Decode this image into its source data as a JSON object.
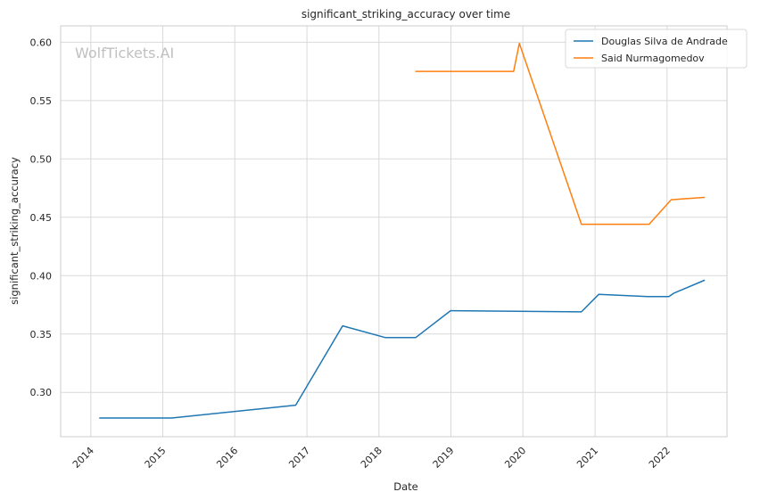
{
  "chart_data": {
    "type": "line",
    "title": "significant_striking_accuracy over time",
    "xlabel": "Date",
    "ylabel": "significant_striking_accuracy",
    "watermark": "WolfTickets.AI",
    "xlim": [
      "2013-08-01",
      "2022-11-01"
    ],
    "ylim": [
      0.262,
      0.614
    ],
    "x_ticks": [
      "2014-01-01",
      "2015-01-01",
      "2016-01-01",
      "2017-01-01",
      "2018-01-01",
      "2019-01-01",
      "2020-01-01",
      "2021-01-01",
      "2022-01-01"
    ],
    "x_tick_labels": [
      "2014",
      "2015",
      "2016",
      "2017",
      "2018",
      "2019",
      "2020",
      "2021",
      "2022"
    ],
    "y_ticks": [
      0.3,
      0.35,
      0.4,
      0.45,
      0.5,
      0.55,
      0.6
    ],
    "y_tick_labels": [
      "0.30",
      "0.35",
      "0.40",
      "0.45",
      "0.50",
      "0.55",
      "0.60"
    ],
    "grid": true,
    "legend_position": "top-right",
    "series": [
      {
        "name": "Douglas Silva de Andrade",
        "color": "#1f77b4",
        "points": [
          {
            "x": "2014-02-15",
            "y": 0.278
          },
          {
            "x": "2015-02-15",
            "y": 0.278
          },
          {
            "x": "2016-11-05",
            "y": 0.289
          },
          {
            "x": "2017-07-01",
            "y": 0.357
          },
          {
            "x": "2018-02-01",
            "y": 0.347
          },
          {
            "x": "2018-07-07",
            "y": 0.347
          },
          {
            "x": "2018-12-30",
            "y": 0.37
          },
          {
            "x": "2020-10-24",
            "y": 0.369
          },
          {
            "x": "2021-01-20",
            "y": 0.384
          },
          {
            "x": "2021-09-25",
            "y": 0.382
          },
          {
            "x": "2022-01-10",
            "y": 0.382
          },
          {
            "x": "2022-02-05",
            "y": 0.385
          },
          {
            "x": "2022-07-09",
            "y": 0.396
          }
        ]
      },
      {
        "name": "Said Nurmagomedov",
        "color": "#ff7f0e",
        "points": [
          {
            "x": "2018-07-07",
            "y": 0.575
          },
          {
            "x": "2019-11-15",
            "y": 0.575
          },
          {
            "x": "2019-12-14",
            "y": 0.599
          },
          {
            "x": "2020-10-24",
            "y": 0.444
          },
          {
            "x": "2021-10-02",
            "y": 0.444
          },
          {
            "x": "2022-01-22",
            "y": 0.465
          },
          {
            "x": "2022-07-09",
            "y": 0.467
          }
        ]
      }
    ]
  }
}
